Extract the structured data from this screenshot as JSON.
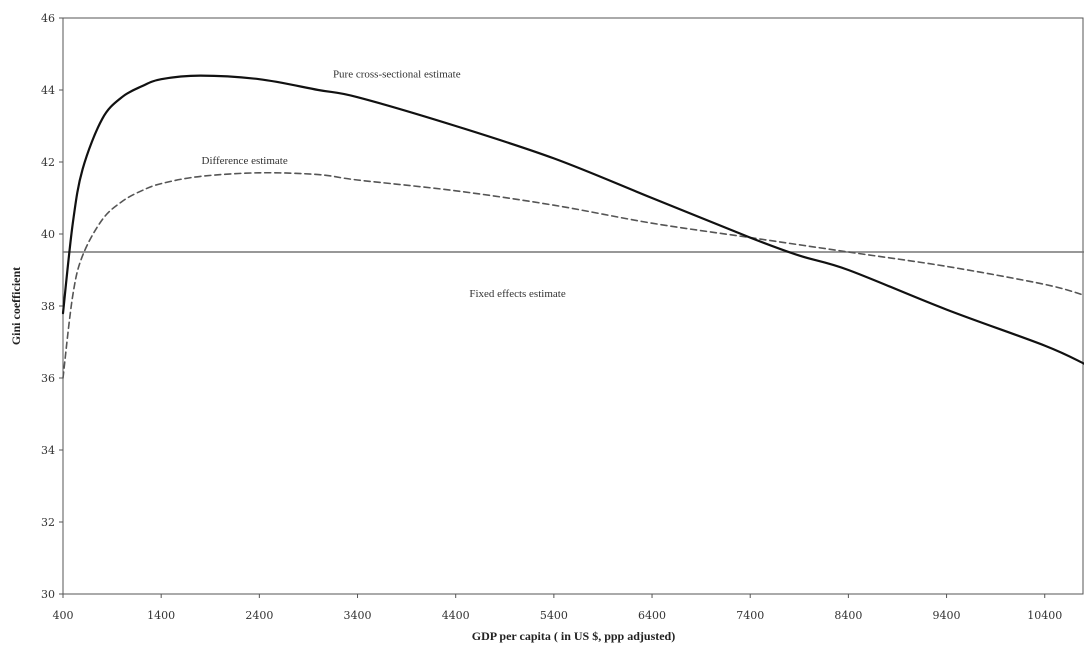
{
  "chart_data": {
    "type": "line",
    "title": "",
    "xlabel": "GDP per capita ( in US $, ppp adjusted)",
    "ylabel": "Gini coefficient",
    "xlim": [
      400,
      10800
    ],
    "ylim": [
      30,
      46
    ],
    "x_ticks": [
      "400",
      "1400",
      "2400",
      "3400",
      "4400",
      "5400",
      "6400",
      "7400",
      "8400",
      "9400",
      "10400"
    ],
    "y_ticks": [
      "30",
      "32",
      "34",
      "36",
      "38",
      "40",
      "42",
      "44",
      "46"
    ],
    "grid": false,
    "legend": "none",
    "series": [
      {
        "name": "Pure cross-sectional estimate",
        "style": "solid",
        "color": "#111111",
        "x": [
          400,
          500,
          600,
          800,
          1000,
          1200,
          1400,
          1800,
          2400,
          3000,
          3400,
          4400,
          5400,
          6400,
          7400,
          7900,
          8400,
          9400,
          10400,
          10800
        ],
        "y": [
          37.8,
          40.3,
          41.8,
          43.2,
          43.8,
          44.1,
          44.3,
          44.4,
          44.3,
          44.0,
          43.8,
          43.0,
          42.1,
          41.0,
          39.9,
          39.4,
          39.0,
          37.9,
          36.9,
          36.4
        ]
      },
      {
        "name": "Difference estimate",
        "style": "dashed",
        "color": "#555555",
        "x": [
          400,
          500,
          600,
          800,
          1000,
          1200,
          1400,
          1800,
          2400,
          3000,
          3400,
          4400,
          5400,
          6400,
          7400,
          8400,
          9400,
          10400,
          10800
        ],
        "y": [
          36.0,
          38.3,
          39.4,
          40.4,
          40.9,
          41.2,
          41.4,
          41.6,
          41.7,
          41.65,
          41.5,
          41.2,
          40.8,
          40.3,
          39.9,
          39.5,
          39.1,
          38.6,
          38.3
        ]
      },
      {
        "name": "Fixed effects estimate",
        "style": "solid",
        "color": "#777777",
        "x": [
          400,
          10800
        ],
        "y": [
          39.5,
          39.5
        ]
      }
    ],
    "annotations": [
      {
        "text": "Pure cross-sectional estimate",
        "x": 3800,
        "y": 44.35
      },
      {
        "text": "Difference estimate",
        "x": 2250,
        "y": 41.95
      },
      {
        "text": "Fixed effects estimate",
        "x": 5030,
        "y": 38.25
      }
    ]
  }
}
